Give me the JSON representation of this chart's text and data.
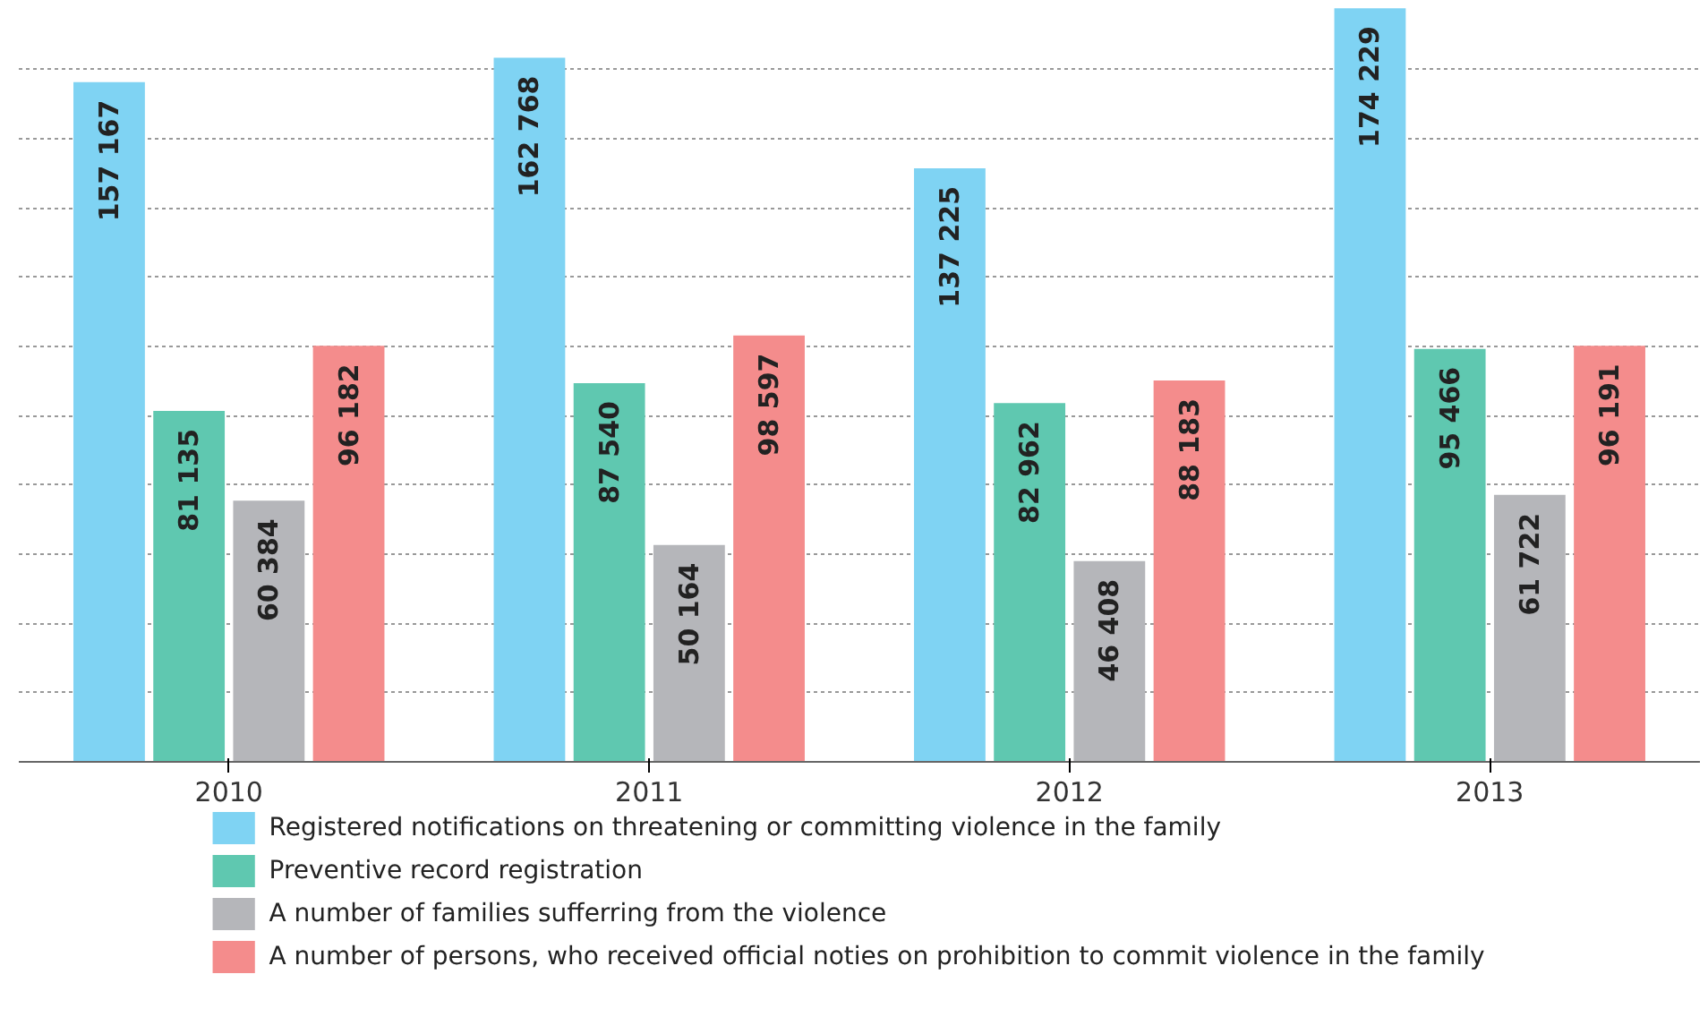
{
  "chart_data": {
    "type": "bar",
    "categories": [
      "2010",
      "2011",
      "2012",
      "2013"
    ],
    "series": [
      {
        "name": "Registered notifications on threatening or committing violence in the family",
        "color": "#7fd3f3",
        "values": [
          157167,
          162768,
          137225,
          174229
        ],
        "value_labels": [
          "157 167",
          "162 768",
          "137 225",
          "174 229"
        ]
      },
      {
        "name": "Preventive record registration",
        "color": "#5fc8b0",
        "values": [
          81135,
          87540,
          82962,
          95466
        ],
        "value_labels": [
          "81 135",
          "87 540",
          "82 962",
          "95 466"
        ]
      },
      {
        "name": "A number of families sufferring from the violence",
        "color": "#b5b6ba",
        "values": [
          60384,
          50164,
          46408,
          61722
        ],
        "value_labels": [
          "60 384",
          "50 164",
          "46 408",
          "61 722"
        ]
      },
      {
        "name": "A number of persons, who received official noties on prohibition to commit violence in the family",
        "color": "#f48c8c",
        "values": [
          96182,
          98597,
          88183,
          96191
        ],
        "value_labels": [
          "96 182",
          "98 597",
          "88 183",
          "96 191"
        ]
      }
    ],
    "yticks": [
      {
        "value": 16000,
        "label": null
      },
      {
        "value": 32000,
        "label": null
      },
      {
        "value": 48000,
        "label": null
      },
      {
        "value": 64000,
        "label": null
      },
      {
        "value": 80000,
        "label": null
      },
      {
        "value": 96000,
        "label": null
      },
      {
        "value": 112000,
        "label": null
      },
      {
        "value": 128000,
        "label": null
      },
      {
        "value": 144000,
        "label": null
      },
      {
        "value": 160000,
        "label": null
      }
    ],
    "tick_labels": "x",
    "grid": "y",
    "legend": "bottom"
  }
}
